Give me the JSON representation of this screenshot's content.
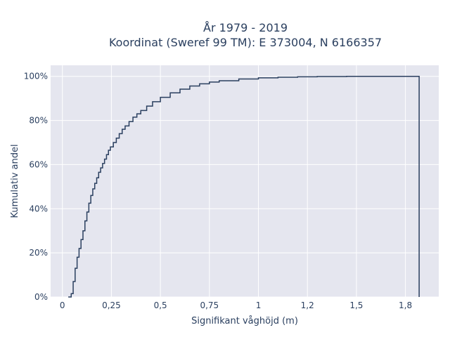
{
  "chart_data": {
    "type": "line",
    "title_line1": "År 1979 - 2019",
    "title_line2": "Koordinat (Sweref 99 TM): E 373004, N 6166357",
    "xlabel": "Signifikant våghöjd (m)",
    "ylabel": "Kumulativ andel",
    "xlim": [
      -0.06,
      1.92
    ],
    "ylim": [
      0,
      1.05
    ],
    "x_ticks": [
      0,
      0.25,
      0.5,
      0.75,
      1,
      1.25,
      1.5,
      1.75
    ],
    "x_tick_labels": [
      "0",
      "0,25",
      "0,5",
      "0,75",
      "1",
      "1,2",
      "1,5",
      "1,8"
    ],
    "y_ticks": [
      0,
      0.2,
      0.4,
      0.6,
      0.8,
      1.0
    ],
    "y_tick_labels": [
      "0%",
      "20%",
      "40%",
      "60%",
      "80%",
      "100%"
    ],
    "grid": true,
    "colors": {
      "plot_bg": "#e5e6ef",
      "grid": "#ffffff",
      "line": "#2a3f5f",
      "text": "#2a3f5f"
    },
    "series": [
      {
        "step": "post",
        "x": [
          0.03,
          0.045,
          0.055,
          0.065,
          0.075,
          0.085,
          0.095,
          0.105,
          0.115,
          0.125,
          0.135,
          0.145,
          0.155,
          0.165,
          0.175,
          0.185,
          0.195,
          0.205,
          0.215,
          0.225,
          0.235,
          0.245,
          0.26,
          0.275,
          0.29,
          0.305,
          0.32,
          0.34,
          0.36,
          0.38,
          0.4,
          0.43,
          0.46,
          0.5,
          0.55,
          0.6,
          0.65,
          0.7,
          0.75,
          0.8,
          0.9,
          1.0,
          1.1,
          1.2,
          1.3,
          1.45,
          1.6,
          1.75,
          1.82,
          1.82
        ],
        "y": [
          0.0,
          0.015,
          0.07,
          0.13,
          0.18,
          0.22,
          0.26,
          0.3,
          0.345,
          0.385,
          0.425,
          0.46,
          0.49,
          0.515,
          0.54,
          0.565,
          0.585,
          0.605,
          0.625,
          0.645,
          0.665,
          0.68,
          0.7,
          0.72,
          0.74,
          0.76,
          0.775,
          0.795,
          0.815,
          0.83,
          0.845,
          0.865,
          0.885,
          0.905,
          0.925,
          0.942,
          0.956,
          0.966,
          0.974,
          0.98,
          0.988,
          0.993,
          0.996,
          0.998,
          0.999,
          1.0,
          1.0,
          1.0,
          1.0,
          0.0
        ]
      }
    ]
  }
}
